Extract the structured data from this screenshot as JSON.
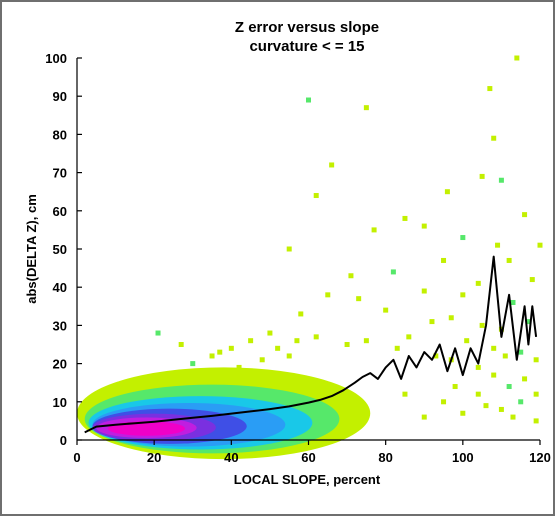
{
  "chart_data": {
    "type": "heatmap",
    "title": "Z error versus slope",
    "subtitle": "curvature < = 15",
    "xlabel": "LOCAL SLOPE, percent",
    "ylabel": "abs(DELTA Z), cm",
    "xlim": [
      0,
      120
    ],
    "ylim": [
      0,
      100
    ],
    "xticks": [
      0,
      20,
      40,
      60,
      80,
      100,
      120
    ],
    "yticks": [
      0,
      10,
      20,
      30,
      40,
      50,
      60,
      70,
      80,
      90,
      100
    ],
    "grid": false,
    "legend": "none",
    "density_colors": [
      "#c3f000",
      "#56e86a",
      "#19c8e8",
      "#2a9df5",
      "#3f4fe6",
      "#7a30e0",
      "#c01ee0",
      "#f000c8"
    ],
    "series": [
      {
        "name": "",
        "type": "line",
        "color": "#000000",
        "x": [
          2,
          5,
          10,
          15,
          20,
          25,
          30,
          35,
          40,
          45,
          50,
          55,
          60,
          63,
          66,
          69,
          72,
          74,
          76,
          78,
          80,
          82,
          84,
          86,
          88,
          90,
          92,
          94,
          96,
          98,
          100,
          102,
          104,
          106,
          108,
          110,
          112,
          114,
          116,
          117,
          118,
          119
        ],
        "y": [
          2,
          3.5,
          4,
          4.4,
          4.8,
          5.3,
          5.8,
          6.3,
          6.9,
          7.5,
          8.1,
          8.8,
          9.8,
          10.5,
          11.5,
          13,
          15,
          16.5,
          17.5,
          16,
          19,
          21,
          16,
          22,
          19,
          23,
          21,
          25,
          18,
          24,
          17,
          24,
          20,
          30,
          48,
          27,
          38,
          21,
          35,
          25,
          35,
          27
        ]
      }
    ],
    "scatter_points": [
      [
        60,
        89
      ],
      [
        75,
        87
      ],
      [
        66,
        72
      ],
      [
        107,
        92
      ],
      [
        114,
        100
      ],
      [
        108,
        79
      ],
      [
        105,
        69
      ],
      [
        110,
        68
      ],
      [
        96,
        65
      ],
      [
        62,
        64
      ],
      [
        85,
        58
      ],
      [
        77,
        55
      ],
      [
        90,
        56
      ],
      [
        116,
        59
      ],
      [
        100,
        53
      ],
      [
        109,
        51
      ],
      [
        112,
        47
      ],
      [
        120,
        51
      ],
      [
        95,
        47
      ],
      [
        55,
        50
      ],
      [
        71,
        43
      ],
      [
        82,
        44
      ],
      [
        104,
        41
      ],
      [
        118,
        42
      ],
      [
        90,
        39
      ],
      [
        65,
        38
      ],
      [
        73,
        37
      ],
      [
        100,
        38
      ],
      [
        113,
        36
      ],
      [
        58,
        33
      ],
      [
        80,
        34
      ],
      [
        92,
        31
      ],
      [
        97,
        32
      ],
      [
        105,
        30
      ],
      [
        110,
        29
      ],
      [
        117,
        31
      ],
      [
        86,
        27
      ],
      [
        62,
        27
      ],
      [
        75,
        26
      ],
      [
        101,
        26
      ],
      [
        108,
        24
      ],
      [
        111,
        22
      ],
      [
        115,
        23
      ],
      [
        119,
        21
      ],
      [
        70,
        25
      ],
      [
        83,
        24
      ],
      [
        93,
        22
      ],
      [
        97,
        21
      ],
      [
        104,
        19
      ],
      [
        30,
        20
      ],
      [
        35,
        22
      ],
      [
        40,
        24
      ],
      [
        45,
        26
      ],
      [
        50,
        28
      ],
      [
        48,
        21
      ],
      [
        55,
        22
      ],
      [
        21,
        28
      ],
      [
        27,
        25
      ],
      [
        37,
        23
      ],
      [
        42,
        19
      ],
      [
        52,
        24
      ],
      [
        57,
        26
      ],
      [
        119,
        12
      ],
      [
        115,
        10
      ],
      [
        110,
        8
      ],
      [
        106,
        9
      ],
      [
        100,
        7
      ],
      [
        95,
        10
      ],
      [
        90,
        6
      ],
      [
        116,
        16
      ],
      [
        112,
        14
      ],
      [
        85,
        12
      ],
      [
        98,
        14
      ],
      [
        104,
        12
      ],
      [
        108,
        17
      ],
      [
        119,
        5
      ],
      [
        113,
        6
      ]
    ]
  }
}
